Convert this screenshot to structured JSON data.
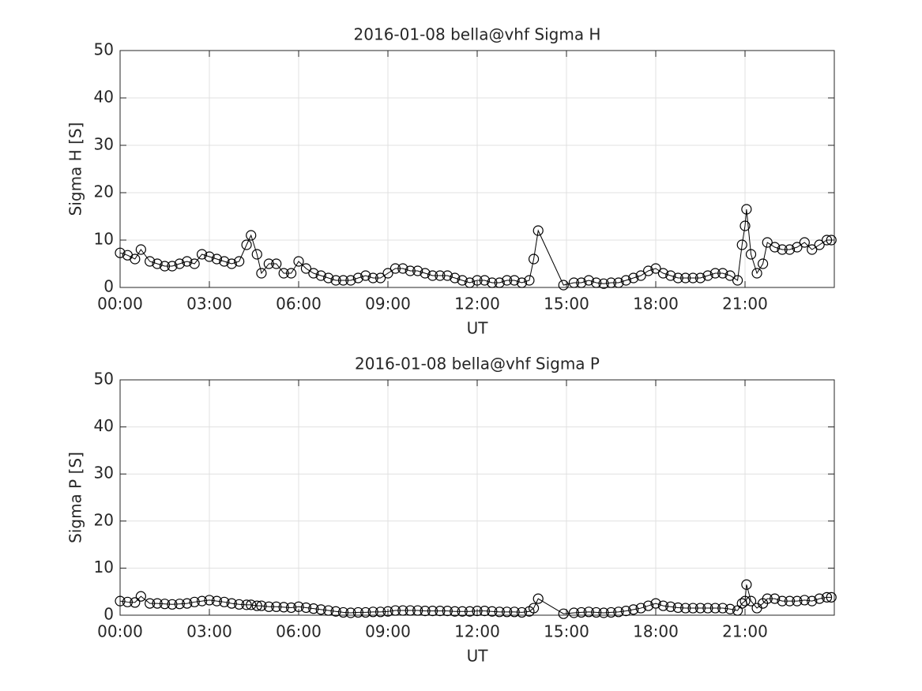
{
  "chart_data": [
    {
      "type": "line",
      "title": "2016-01-08  bella@vhf Sigma H",
      "xlabel": "UT",
      "ylabel": "Sigma H [S]",
      "color": "#000000",
      "grid": true,
      "marker": "circle",
      "xlim": [
        0,
        24
      ],
      "ylim": [
        0,
        50
      ],
      "yticks": [
        0,
        10,
        20,
        30,
        40,
        50
      ],
      "xticks": [
        {
          "value": 0,
          "label": "00:00"
        },
        {
          "value": 3,
          "label": "03:00"
        },
        {
          "value": 6,
          "label": "06:00"
        },
        {
          "value": 9,
          "label": "09:00"
        },
        {
          "value": 12,
          "label": "12:00"
        },
        {
          "value": 15,
          "label": "15:00"
        },
        {
          "value": 18,
          "label": "18:00"
        },
        {
          "value": 21,
          "label": "21:00"
        }
      ],
      "x": [
        0,
        0.25,
        0.5,
        0.7,
        1,
        1.25,
        1.5,
        1.75,
        2,
        2.25,
        2.5,
        2.75,
        3,
        3.25,
        3.5,
        3.75,
        4,
        4.25,
        4.4,
        4.6,
        4.75,
        5,
        5.25,
        5.5,
        5.75,
        6,
        6.25,
        6.5,
        6.75,
        7,
        7.25,
        7.5,
        7.75,
        8,
        8.25,
        8.5,
        8.75,
        9,
        9.25,
        9.5,
        9.75,
        10,
        10.25,
        10.5,
        10.75,
        11,
        11.25,
        11.5,
        11.75,
        12,
        12.25,
        12.5,
        12.75,
        13,
        13.25,
        13.5,
        13.75,
        13.9,
        14.05,
        14.9,
        15.25,
        15.5,
        15.75,
        16,
        16.25,
        16.5,
        16.75,
        17,
        17.25,
        17.5,
        17.75,
        18,
        18.25,
        18.5,
        18.75,
        19,
        19.25,
        19.5,
        19.75,
        20,
        20.25,
        20.5,
        20.75,
        20.9,
        21,
        21.05,
        21.2,
        21.4,
        21.6,
        21.75,
        22,
        22.25,
        22.5,
        22.75,
        23,
        23.25,
        23.5,
        23.75,
        23.9
      ],
      "values": [
        7.3,
        6.8,
        6,
        8,
        5.5,
        5,
        4.5,
        4.5,
        5,
        5.5,
        5,
        7,
        6.5,
        6,
        5.5,
        5,
        5.5,
        9,
        11,
        7,
        3,
        5,
        5,
        3,
        3,
        5.5,
        4,
        3,
        2.5,
        2,
        1.5,
        1.5,
        1.5,
        2,
        2.5,
        2,
        2,
        3,
        4,
        4,
        3.5,
        3.5,
        3,
        2.5,
        2.5,
        2.5,
        2,
        1.5,
        1,
        1.5,
        1.5,
        1,
        1,
        1.5,
        1.5,
        1,
        1.5,
        6,
        12,
        0.5,
        1,
        1,
        1.5,
        1,
        0.8,
        1,
        1,
        1.5,
        2,
        2.5,
        3.5,
        4,
        3,
        2.5,
        2,
        2,
        2,
        2,
        2.5,
        3,
        3,
        2.5,
        1.5,
        9,
        13,
        16.5,
        7,
        3,
        5,
        9.5,
        8.5,
        8,
        8,
        8.5,
        9.5,
        8,
        9,
        10,
        10
      ]
    },
    {
      "type": "line",
      "title": "2016-01-08  bella@vhf Sigma P",
      "xlabel": "UT",
      "ylabel": "Sigma P [S]",
      "color": "#000000",
      "grid": true,
      "marker": "circle",
      "xlim": [
        0,
        24
      ],
      "ylim": [
        0,
        50
      ],
      "yticks": [
        0,
        10,
        20,
        30,
        40,
        50
      ],
      "xticks": [
        {
          "value": 0,
          "label": "00:00"
        },
        {
          "value": 3,
          "label": "03:00"
        },
        {
          "value": 6,
          "label": "06:00"
        },
        {
          "value": 9,
          "label": "09:00"
        },
        {
          "value": 12,
          "label": "12:00"
        },
        {
          "value": 15,
          "label": "15:00"
        },
        {
          "value": 18,
          "label": "18:00"
        },
        {
          "value": 21,
          "label": "21:00"
        }
      ],
      "x": [
        0,
        0.25,
        0.5,
        0.7,
        1,
        1.25,
        1.5,
        1.75,
        2,
        2.25,
        2.5,
        2.75,
        3,
        3.25,
        3.5,
        3.75,
        4,
        4.25,
        4.4,
        4.6,
        4.75,
        5,
        5.25,
        5.5,
        5.75,
        6,
        6.25,
        6.5,
        6.75,
        7,
        7.25,
        7.5,
        7.75,
        8,
        8.25,
        8.5,
        8.75,
        9,
        9.25,
        9.5,
        9.75,
        10,
        10.25,
        10.5,
        10.75,
        11,
        11.25,
        11.5,
        11.75,
        12,
        12.25,
        12.5,
        12.75,
        13,
        13.25,
        13.5,
        13.75,
        13.9,
        14.05,
        14.9,
        15.25,
        15.5,
        15.75,
        16,
        16.25,
        16.5,
        16.75,
        17,
        17.25,
        17.5,
        17.75,
        18,
        18.25,
        18.5,
        18.75,
        19,
        19.25,
        19.5,
        19.75,
        20,
        20.25,
        20.5,
        20.75,
        20.9,
        21,
        21.05,
        21.2,
        21.4,
        21.6,
        21.75,
        22,
        22.25,
        22.5,
        22.75,
        23,
        23.25,
        23.5,
        23.75,
        23.9
      ],
      "values": [
        3,
        2.8,
        2.7,
        4,
        2.5,
        2.5,
        2.4,
        2.3,
        2.4,
        2.5,
        2.8,
        3,
        3.2,
        3,
        2.8,
        2.5,
        2.3,
        2.2,
        2.2,
        2,
        2,
        1.8,
        1.8,
        1.7,
        1.6,
        1.8,
        1.6,
        1.4,
        1.2,
        1,
        0.8,
        0.6,
        0.5,
        0.6,
        0.6,
        0.7,
        0.7,
        0.8,
        1,
        1,
        1,
        1,
        0.9,
        0.9,
        0.9,
        0.9,
        0.8,
        0.8,
        0.8,
        0.9,
        0.9,
        0.8,
        0.7,
        0.7,
        0.7,
        0.6,
        0.8,
        1.5,
        3.5,
        0.3,
        0.5,
        0.6,
        0.7,
        0.6,
        0.5,
        0.6,
        0.7,
        0.9,
        1.2,
        1.5,
        2,
        2.5,
        2,
        1.8,
        1.6,
        1.5,
        1.5,
        1.5,
        1.5,
        1.5,
        1.5,
        1.3,
        1,
        2.5,
        3,
        6.5,
        3,
        1.5,
        2.5,
        3.5,
        3.5,
        3,
        3,
        3,
        3.2,
        3,
        3.5,
        3.8,
        3.8
      ]
    }
  ]
}
